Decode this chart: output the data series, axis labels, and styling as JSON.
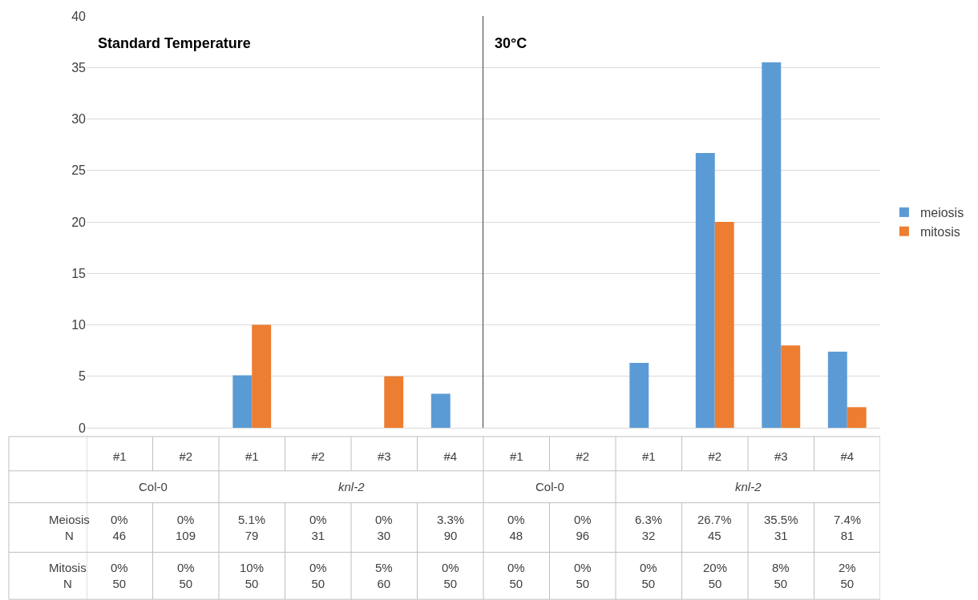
{
  "chart_data": [
    {
      "type": "bar",
      "title": "Standard Temperature",
      "categories": [
        "#1",
        "#2",
        "#1",
        "#2",
        "#3",
        "#4"
      ],
      "series": [
        {
          "color": "#5b9bd5",
          "values": [
            0,
            0,
            5.1,
            0,
            0,
            3.3
          ],
          "value_labels": [
            "0%",
            "0%",
            "5.1%",
            "0%",
            "0%",
            "3.3%"
          ]
        },
        {
          "color": "#ed7d31",
          "values": [
            0,
            0,
            10,
            0,
            5,
            0
          ],
          "value_labels": [
            "0%",
            "0%",
            "10%",
            "0%",
            "5%",
            "0%"
          ]
        }
      ],
      "ylim": [
        0,
        40
      ],
      "yticks": [
        0,
        5,
        10,
        15,
        20,
        25,
        30,
        35,
        40
      ],
      "grid": "y",
      "annotations": [
        "Col-0",
        "knl-2",
        "Meiosis\nN",
        "Mitosis\nN",
        "46",
        "109",
        "79",
        "31",
        "30",
        "90",
        "50",
        "50",
        "50",
        "50",
        "60",
        "50"
      ]
    },
    {
      "type": "bar",
      "title": "30°C",
      "categories": [
        "#1",
        "#2",
        "#1",
        "#2",
        "#3",
        "#4"
      ],
      "series": [
        {
          "name": "meiosis",
          "color": "#5b9bd5",
          "values": [
            0,
            0,
            6.3,
            26.7,
            35.5,
            7.4
          ],
          "value_labels": [
            "0%",
            "0%",
            "6.3%",
            "26.7%",
            "35.5%",
            "7.4%"
          ]
        },
        {
          "name": "mitosis",
          "color": "#ed7d31",
          "values": [
            0,
            0,
            0,
            20,
            8,
            2
          ],
          "value_labels": [
            "0%",
            "0%",
            "0%",
            "20%",
            "8%",
            "2%"
          ]
        }
      ],
      "ylim": [
        0,
        40
      ],
      "yticks": [
        0,
        5,
        10,
        15,
        20,
        25,
        30,
        35,
        40
      ],
      "grid": "y",
      "legend": "right",
      "tick_labels": "x",
      "annotations": [
        "Col-0",
        "knl-2",
        "48",
        "96",
        "32",
        "45",
        "31",
        "81",
        "50",
        "50",
        "50",
        "50",
        "50",
        "50"
      ]
    }
  ]
}
